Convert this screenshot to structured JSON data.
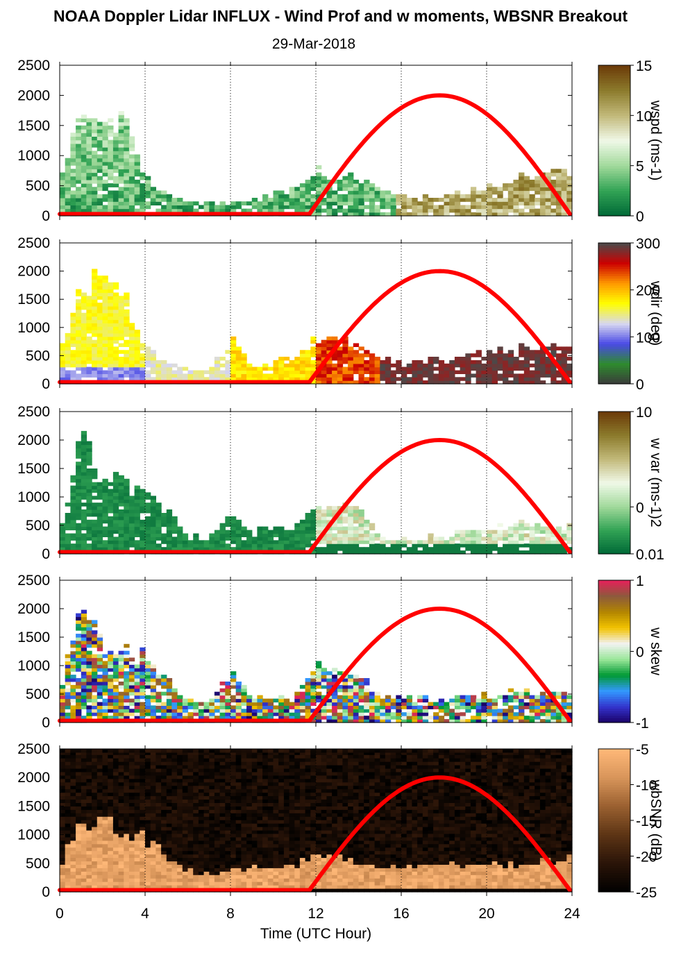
{
  "figure": {
    "title": "NOAA Doppler Lidar INFLUX - Wind Prof and w moments, WBSNR Breakout",
    "subtitle": "29-Mar-2018",
    "xlabel": "Time (UTC Hour)"
  },
  "chart_data": [
    {
      "type": "heatmap",
      "variable": "wspd",
      "colorbar_label": "wspd (ms-1)",
      "colorbar_ticks": [
        "15",
        "10",
        "5",
        "0"
      ],
      "clim": [
        0,
        15
      ],
      "colormap": [
        "#006837",
        "#31a354",
        "#a1d99b",
        "#f0f9e8",
        "#c2b97a",
        "#8c7b2c",
        "#6b3a08"
      ],
      "xlim": [
        0,
        24
      ],
      "ylim": [
        0,
        2500
      ],
      "x_ticks": [
        0,
        4,
        8,
        12,
        16,
        20,
        24
      ],
      "y_ticks": [
        0,
        500,
        1000,
        1500,
        2000,
        2500
      ],
      "sun_elevation_curve": {
        "color": "#ff0000",
        "start_hour": 11.7,
        "peak_hour": 17.8,
        "end_hour": 23.9,
        "peak_value": 2000
      },
      "data_profile_top_m": [
        [
          0,
          450
        ],
        [
          1,
          1900
        ],
        [
          2,
          1700
        ],
        [
          3,
          1500
        ],
        [
          4,
          650
        ],
        [
          5,
          350
        ],
        [
          6,
          220
        ],
        [
          7,
          180
        ],
        [
          8,
          200
        ],
        [
          9,
          250
        ],
        [
          10,
          300
        ],
        [
          11,
          450
        ],
        [
          12,
          700
        ],
        [
          13,
          650
        ],
        [
          14,
          600
        ],
        [
          15,
          420
        ],
        [
          16,
          300
        ],
        [
          17,
          300
        ],
        [
          18,
          300
        ],
        [
          19,
          350
        ],
        [
          20,
          450
        ],
        [
          21,
          550
        ],
        [
          22,
          600
        ],
        [
          23,
          650
        ],
        [
          24,
          700
        ]
      ]
    },
    {
      "type": "heatmap",
      "variable": "wdir",
      "colorbar_label": "wdir (deg)",
      "colorbar_ticks": [
        "300",
        "200",
        "100",
        "0"
      ],
      "clim": [
        0,
        360
      ],
      "colormap": [
        "#3a3a3a",
        "#2e8b2e",
        "#4a4ae6",
        "#d8d8f0",
        "#ffff00",
        "#ff9900",
        "#cc0000",
        "#4a4a4a"
      ],
      "xlim": [
        0,
        24
      ],
      "ylim": [
        0,
        2500
      ],
      "x_ticks": [
        0,
        4,
        8,
        12,
        16,
        20,
        24
      ],
      "y_ticks": [
        0,
        500,
        1000,
        1500,
        2000,
        2500
      ],
      "sun_elevation_curve": {
        "color": "#ff0000",
        "start_hour": 11.7,
        "peak_hour": 17.8,
        "end_hour": 23.9,
        "peak_value": 2000
      },
      "data_profile_top_m": [
        [
          0,
          450
        ],
        [
          1,
          1900
        ],
        [
          2,
          1700
        ],
        [
          3,
          1500
        ],
        [
          4,
          650
        ],
        [
          5,
          350
        ],
        [
          6,
          220
        ],
        [
          7,
          180
        ],
        [
          8,
          800
        ],
        [
          9,
          250
        ],
        [
          10,
          350
        ],
        [
          11,
          450
        ],
        [
          12,
          800
        ],
        [
          13,
          750
        ],
        [
          14,
          600
        ],
        [
          15,
          420
        ],
        [
          16,
          350
        ],
        [
          17,
          400
        ],
        [
          18,
          400
        ],
        [
          19,
          450
        ],
        [
          20,
          550
        ],
        [
          21,
          600
        ],
        [
          22,
          650
        ],
        [
          23,
          650
        ],
        [
          24,
          700
        ]
      ]
    },
    {
      "type": "heatmap",
      "variable": "w var",
      "colorbar_label": "w var (ms-1)2",
      "colorbar_ticks": [
        "10",
        "0",
        "0.01"
      ],
      "clim": [
        0.01,
        10
      ],
      "log_scale": true,
      "colormap": [
        "#006837",
        "#31a354",
        "#a1d99b",
        "#f0f9e8",
        "#c2b97a",
        "#8c7b2c",
        "#6b3a08"
      ],
      "xlim": [
        0,
        24
      ],
      "ylim": [
        0,
        2500
      ],
      "x_ticks": [
        0,
        4,
        8,
        12,
        16,
        20,
        24
      ],
      "y_ticks": [
        0,
        500,
        1000,
        1500,
        2000,
        2500
      ],
      "sun_elevation_curve": {
        "color": "#ff0000",
        "start_hour": 11.7,
        "peak_hour": 17.8,
        "end_hour": 23.9,
        "peak_value": 2000
      },
      "data_profile_top_m": [
        [
          0,
          450
        ],
        [
          1,
          2000
        ],
        [
          2,
          1300
        ],
        [
          3,
          1200
        ],
        [
          4,
          1100
        ],
        [
          5,
          800
        ],
        [
          6,
          300
        ],
        [
          7,
          250
        ],
        [
          8,
          700
        ],
        [
          9,
          350
        ],
        [
          10,
          450
        ],
        [
          11,
          450
        ],
        [
          12,
          800
        ],
        [
          13,
          900
        ],
        [
          14,
          800
        ],
        [
          15,
          300
        ],
        [
          16,
          250
        ],
        [
          17,
          250
        ],
        [
          18,
          300
        ],
        [
          19,
          350
        ],
        [
          20,
          400
        ],
        [
          21,
          450
        ],
        [
          22,
          500
        ],
        [
          23,
          450
        ],
        [
          24,
          450
        ]
      ]
    },
    {
      "type": "heatmap",
      "variable": "w skew",
      "colorbar_label": "w skew",
      "colorbar_ticks": [
        "1",
        "0",
        "-1"
      ],
      "clim": [
        -1,
        1
      ],
      "colormap": [
        "#1a0066",
        "#3333cc",
        "#3399ff",
        "#009933",
        "#99e699",
        "#f2f2f2",
        "#f2c200",
        "#b38600",
        "#8c5a3c",
        "#e6205a"
      ],
      "xlim": [
        0,
        24
      ],
      "ylim": [
        0,
        2500
      ],
      "x_ticks": [
        0,
        4,
        8,
        12,
        16,
        20,
        24
      ],
      "y_ticks": [
        0,
        500,
        1000,
        1500,
        2000,
        2500
      ],
      "sun_elevation_curve": {
        "color": "#ff0000",
        "start_hour": 11.7,
        "peak_hour": 17.8,
        "end_hour": 23.9,
        "peak_value": 2000
      },
      "data_profile_top_m": [
        [
          0,
          450
        ],
        [
          1,
          2200
        ],
        [
          2,
          1300
        ],
        [
          3,
          1200
        ],
        [
          4,
          1100
        ],
        [
          5,
          700
        ],
        [
          6,
          350
        ],
        [
          7,
          300
        ],
        [
          8,
          900
        ],
        [
          9,
          350
        ],
        [
          10,
          400
        ],
        [
          11,
          400
        ],
        [
          12,
          950
        ],
        [
          13,
          900
        ],
        [
          14,
          800
        ],
        [
          15,
          450
        ],
        [
          16,
          400
        ],
        [
          17,
          400
        ],
        [
          18,
          400
        ],
        [
          19,
          400
        ],
        [
          20,
          450
        ],
        [
          21,
          500
        ],
        [
          22,
          500
        ],
        [
          23,
          450
        ],
        [
          24,
          450
        ]
      ]
    },
    {
      "type": "heatmap",
      "variable": "wbSNR",
      "colorbar_label": "wbSNR (dB)",
      "colorbar_ticks": [
        "-5",
        "-10",
        "-15",
        "-20",
        "-25"
      ],
      "clim": [
        -25,
        -5
      ],
      "colormap": [
        "#000000",
        "#2a1408",
        "#5c3414",
        "#9a6030",
        "#d8955a",
        "#ffb878"
      ],
      "xlim": [
        0,
        24
      ],
      "ylim": [
        0,
        2500
      ],
      "x_ticks": [
        0,
        4,
        8,
        12,
        16,
        20,
        24
      ],
      "y_ticks": [
        0,
        500,
        1000,
        1500,
        2000,
        2500
      ],
      "sun_elevation_curve": {
        "color": "#ff0000",
        "start_hour": 11.7,
        "peak_hour": 17.8,
        "end_hour": 23.9,
        "peak_value": 2000
      },
      "data_profile_top_m": [
        [
          0,
          450
        ],
        [
          1,
          1200
        ],
        [
          2,
          1300
        ],
        [
          3,
          1100
        ],
        [
          4,
          900
        ],
        [
          5,
          600
        ],
        [
          6,
          350
        ],
        [
          7,
          300
        ],
        [
          8,
          350
        ],
        [
          9,
          400
        ],
        [
          10,
          420
        ],
        [
          11,
          450
        ],
        [
          12,
          550
        ],
        [
          13,
          600
        ],
        [
          14,
          500
        ],
        [
          15,
          420
        ],
        [
          16,
          400
        ],
        [
          17,
          420
        ],
        [
          18,
          450
        ],
        [
          19,
          420
        ],
        [
          20,
          450
        ],
        [
          21,
          450
        ],
        [
          22,
          500
        ],
        [
          23,
          500
        ],
        [
          24,
          550
        ]
      ]
    }
  ]
}
